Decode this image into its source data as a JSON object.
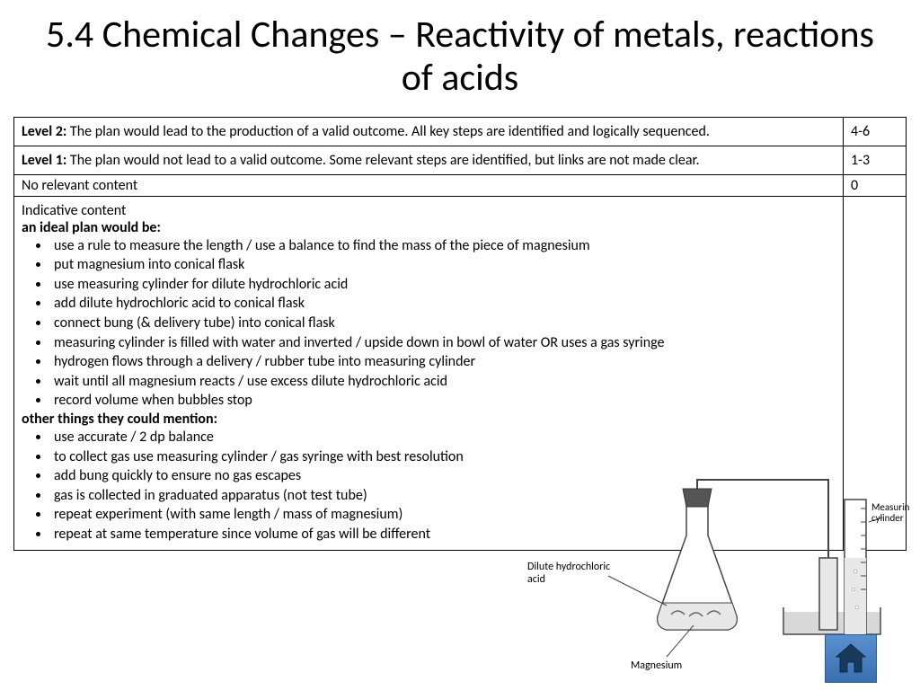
{
  "title": "5.4 Chemical Changes – Reactivity of metals, reactions of acids",
  "rubric": {
    "level2": {
      "label": "Level 2:",
      "text": " The plan would lead to the production of a valid outcome. All key steps are identified and logically sequenced.",
      "score": "4-6"
    },
    "level1": {
      "label": "Level 1:",
      "text": " The plan would not lead to a valid outcome. Some relevant steps are identified, but links are not made clear.",
      "score": "1-3"
    },
    "none": {
      "text": "No relevant content",
      "score": "0"
    }
  },
  "content": {
    "heading": "Indicative content",
    "subheading1": "an ideal plan would be:",
    "ideal": [
      "use a rule to measure the length / use a balance to find the mass of the piece of magnesium",
      "put magnesium into conical flask",
      "use measuring cylinder for dilute hydrochloric acid",
      "add dilute hydrochloric acid to conical flask",
      "connect bung (& delivery tube) into conical flask",
      "measuring cylinder is filled with water and inverted / upside down in bowl of water OR uses a gas syringe",
      "hydrogen flows through a delivery / rubber tube into measuring cylinder",
      "wait until all magnesium reacts / use excess dilute hydrochloric acid",
      "record volume when bubbles stop"
    ],
    "subheading2": "other things they could mention:",
    "other": [
      "use accurate / 2 dp balance",
      "to collect gas use measuring cylinder / gas syringe with best resolution",
      "add bung quickly to ensure no gas escapes",
      "gas is collected in graduated apparatus (not test tube)",
      "repeat experiment (with same length / mass of magnesium)",
      "repeat at same temperature since volume of gas will be different"
    ]
  },
  "diagram": {
    "label_acid": "Dilute hydrochloric acid",
    "label_mg": "Magnesium",
    "label_cyl": "Measuring cylinder",
    "colors": {
      "stroke": "#444444",
      "liquid": "#e8e8e8",
      "bung": "#555555",
      "water": "#d8d8d8",
      "home_fill": "#1a3a5a",
      "home_stroke": "#0a2a4a"
    }
  }
}
